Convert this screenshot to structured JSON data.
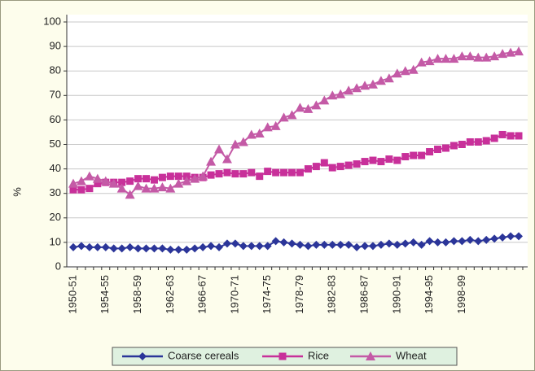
{
  "chart_data": {
    "type": "line",
    "ylabel": "%",
    "categories": [
      "1950-51",
      null,
      null,
      null,
      "1954-55",
      null,
      null,
      null,
      "1958-59",
      null,
      null,
      null,
      "1962-63",
      null,
      null,
      null,
      "1966-67",
      null,
      null,
      null,
      "1970-71",
      null,
      null,
      null,
      "1974-75",
      null,
      null,
      null,
      "1978-79",
      null,
      null,
      null,
      "1982-83",
      null,
      null,
      null,
      "1986-87",
      null,
      null,
      null,
      "1990-91",
      null,
      null,
      null,
      "1994-95",
      null,
      null,
      null,
      "1998-99",
      null,
      null,
      null,
      null,
      null,
      null,
      null
    ],
    "series": [
      {
        "name": "Coarse cereals",
        "color": "#2b3599",
        "marker": "diamond",
        "values": [
          8,
          8.5,
          8,
          8,
          8,
          7.5,
          7.5,
          8,
          7.5,
          7.5,
          7.5,
          7.5,
          7,
          7,
          7,
          7.5,
          8,
          8.5,
          8,
          9.5,
          9.5,
          8.5,
          8.5,
          8.5,
          8.5,
          10.5,
          10,
          9.5,
          9,
          8.5,
          9,
          9,
          9,
          9,
          9,
          8,
          8.5,
          8.5,
          9,
          9.5,
          9,
          9.5,
          10,
          9,
          10.5,
          10,
          10,
          10.5,
          10.5,
          11,
          10.5,
          11,
          11.5,
          12,
          12.5,
          12.5
        ]
      },
      {
        "name": "Rice",
        "color": "#c8309a",
        "marker": "square",
        "values": [
          31.5,
          31.5,
          32,
          34,
          34.5,
          34.5,
          34.5,
          35,
          36,
          36,
          35.5,
          36.5,
          37,
          37,
          37,
          36.5,
          36.5,
          37.5,
          38,
          38.5,
          38,
          38,
          38.5,
          37,
          39,
          38.5,
          38.5,
          38.5,
          38.5,
          40,
          41,
          42.5,
          40.5,
          41,
          41.5,
          42,
          43,
          43.5,
          43,
          44,
          43.5,
          45,
          45.5,
          45.5,
          47,
          48,
          48.5,
          49.5,
          50,
          51,
          51,
          51.5,
          52.5,
          54,
          53.5,
          53.5
        ]
      },
      {
        "name": "Wheat",
        "color": "#c45aa6",
        "marker": "triangle",
        "values": [
          34,
          35,
          37,
          36,
          35,
          34,
          32,
          29.5,
          33,
          32,
          32,
          32.5,
          32,
          34,
          35,
          36,
          37,
          43,
          48,
          44,
          50,
          51,
          54,
          54.5,
          57,
          57.5,
          61,
          62,
          65,
          64.5,
          66,
          68,
          70,
          70.5,
          72,
          73,
          74,
          74.5,
          76,
          77,
          79,
          80,
          80.5,
          83.5,
          84,
          85,
          85,
          85,
          86,
          86,
          85.5,
          85.5,
          86,
          87,
          87.5,
          88
        ]
      }
    ],
    "ylim": [
      0,
      100
    ],
    "yticks": [
      0,
      10,
      20,
      30,
      40,
      50,
      60,
      70,
      80,
      90,
      100
    ],
    "grid": true,
    "legend": "bottom"
  }
}
